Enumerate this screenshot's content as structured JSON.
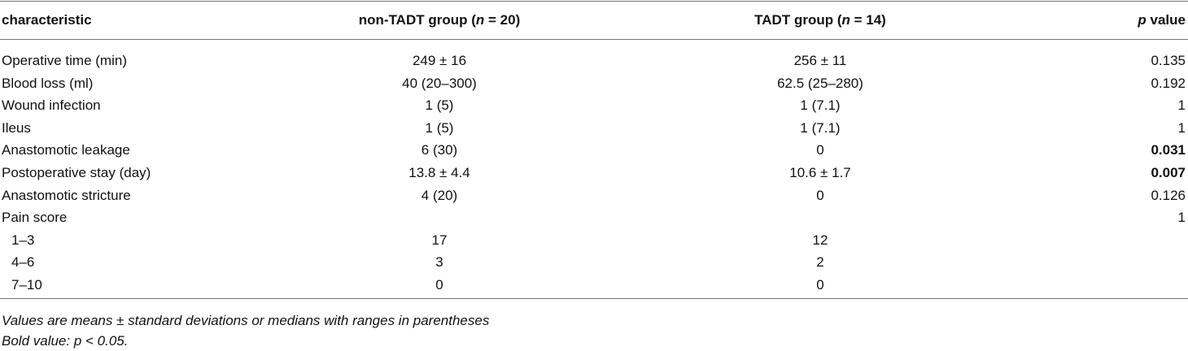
{
  "table": {
    "header": [
      [
        "characteristic"
      ],
      [
        "non-TADT group (",
        "n",
        " = 20)"
      ],
      [
        "TADT group (",
        "n",
        " = 14)"
      ],
      [
        "p",
        " value"
      ]
    ],
    "rows": [
      {
        "cells": [
          "Operative time (min)",
          "249 ± 16",
          "256 ± 11",
          "0.135"
        ]
      },
      {
        "cells": [
          "Blood loss (ml)",
          "40 (20–300)",
          "62.5 (25–280)",
          "0.192"
        ]
      },
      {
        "cells": [
          "Wound infection",
          "1 (5)",
          "1 (7.1)",
          "1"
        ]
      },
      {
        "cells": [
          "Ileus",
          "1 (5)",
          "1 (7.1)",
          "1"
        ]
      },
      {
        "cells": [
          "Anastomotic leakage",
          "6 (30)",
          "0",
          "0.031"
        ],
        "bold_p": true
      },
      {
        "cells": [
          "Postoperative stay (day)",
          "13.8 ± 4.4",
          "10.6 ± 1.7",
          "0.007"
        ],
        "bold_p": true
      },
      {
        "cells": [
          "Anastomotic stricture",
          "4 (20)",
          "0",
          "0.126"
        ]
      },
      {
        "cells": [
          "Pain score",
          null,
          null,
          "1"
        ]
      },
      {
        "cells": [
          "1–3",
          "17",
          "12",
          null
        ],
        "indent": true
      },
      {
        "cells": [
          "4–6",
          "3",
          "2",
          null
        ],
        "indent": true
      },
      {
        "cells": [
          "7–10",
          "0",
          "0",
          null
        ],
        "indent": true
      }
    ],
    "notes": [
      "Values are means ± standard deviations or medians with ranges in parentheses",
      "Bold value:  p < 0.05."
    ]
  }
}
